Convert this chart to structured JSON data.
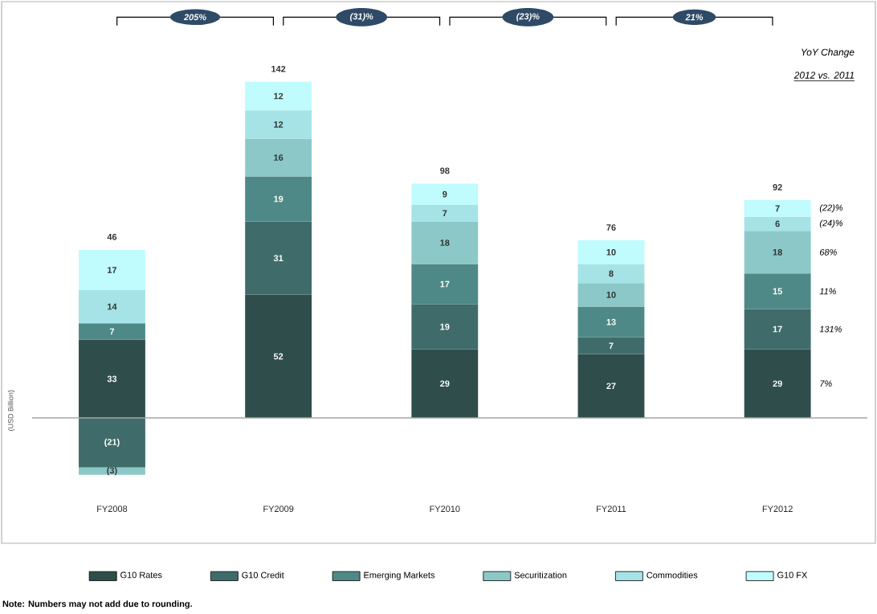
{
  "chart_data": {
    "type": "bar",
    "stacked": true,
    "ylabel": "(USD Billion)",
    "legend": "bottom",
    "categories": [
      "FY2008",
      "FY2009",
      "FY2010",
      "FY2011",
      "FY2012"
    ],
    "series": [
      {
        "name": "G10 Rates",
        "color": "#2f4d4b",
        "values": [
          33,
          52,
          29,
          27,
          29
        ],
        "value_labels": [
          "33",
          "52",
          "29",
          "27",
          "29"
        ]
      },
      {
        "name": "G10 Credit",
        "color": "#3f6c6a",
        "values": [
          -21,
          31,
          19,
          7,
          17
        ],
        "value_labels": [
          "(21)",
          "31",
          "19",
          "7",
          "17"
        ]
      },
      {
        "name": "Emerging Markets",
        "color": "#4f8987",
        "values": [
          7,
          19,
          17,
          13,
          15
        ],
        "value_labels": [
          "7",
          "19",
          "17",
          "13",
          "15"
        ]
      },
      {
        "name": "Securitization",
        "color": "#8cc8c8",
        "values": [
          -3,
          16,
          18,
          10,
          18
        ],
        "value_labels": [
          "(3)",
          "16",
          "18",
          "10",
          "18"
        ]
      },
      {
        "name": "Commodities",
        "color": "#a5e3e6",
        "values": [
          14,
          12,
          7,
          8,
          6
        ],
        "value_labels": [
          "14",
          "12",
          "7",
          "8",
          "6"
        ]
      },
      {
        "name": "G10 FX",
        "color": "#c0fbfd",
        "values": [
          17,
          12,
          9,
          10,
          7
        ],
        "value_labels": [
          "17",
          "12",
          "9",
          "10",
          "7"
        ]
      }
    ],
    "totals": [
      "46",
      "142",
      "98",
      "76",
      "92"
    ],
    "annotations": [
      "205%",
      "(31)%",
      "(23)%",
      "21%",
      "YoY Change",
      "2012 vs. 2011",
      "Note: Numbers may not add due to rounding.",
      "7%",
      "131%",
      "11%",
      "68%",
      "(24)%",
      "(22)%"
    ]
  }
}
